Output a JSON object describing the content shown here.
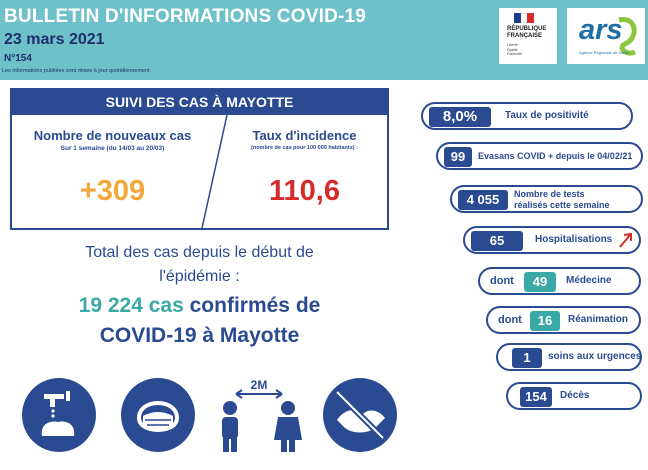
{
  "header": {
    "title": "BULLETIN D'INFORMATIONS COVID-19",
    "date": "23 mars 2021",
    "number": "N°154",
    "note": "Les informations publiées sont mises à jour quotidiennement",
    "logo_rf_line1": "RÉPUBLIQUE",
    "logo_rf_line2": "FRANÇAISE",
    "logo_rf_motto": [
      "Liberté",
      "Égalité",
      "Fraternité"
    ],
    "logo_ars": "ars",
    "logo_ars_sub": "Agence Régionale de Santé"
  },
  "suivi": {
    "title": "SUIVI DES CAS À MAYOTTE",
    "col1_title": "Nombre de nouveaux cas",
    "col1_sub": "Sur 1 semaine (du 14/03 au 20/03)",
    "col1_value": "+309",
    "col2_title": "Taux d'incidence",
    "col2_sub": "(nombre de cas pour 100 000 habitants) :",
    "col2_value": "110,6"
  },
  "total": {
    "line1": "Total des cas depuis le début de",
    "line2": "l'épidémie :",
    "count": "19 224 cas",
    "line3_rest": " confirmés de",
    "line4": "COVID-19 à Mayotte"
  },
  "icons": [
    "hand-washing-icon",
    "mask-icon",
    "distance-icon",
    "no-handshake-icon"
  ],
  "distance_label": "2M",
  "indicators": [
    {
      "value": "8,0%",
      "label": "Taux de positivité"
    },
    {
      "value": "99",
      "label": "Evasans COVID + depuis le 04/02/21"
    },
    {
      "value": "4 055",
      "label_line1": "Nombre de tests",
      "label_line2": "réalisés cette semaine"
    },
    {
      "value": "65",
      "label": "Hospitalisations",
      "trend": "up"
    },
    {
      "prefix": "dont",
      "value": "49",
      "label": "Médecine"
    },
    {
      "prefix": "dont",
      "value": "16",
      "label": "Réanimation"
    },
    {
      "value": "1",
      "label": "soins aux urgences"
    },
    {
      "value": "154",
      "label": "Décès"
    }
  ],
  "colors": {
    "navy": "#2a4a91",
    "teal": "#3aa8a5",
    "header_bg": "#6ec1c9",
    "orange": "#f4a83a",
    "red": "#d62b2b"
  }
}
